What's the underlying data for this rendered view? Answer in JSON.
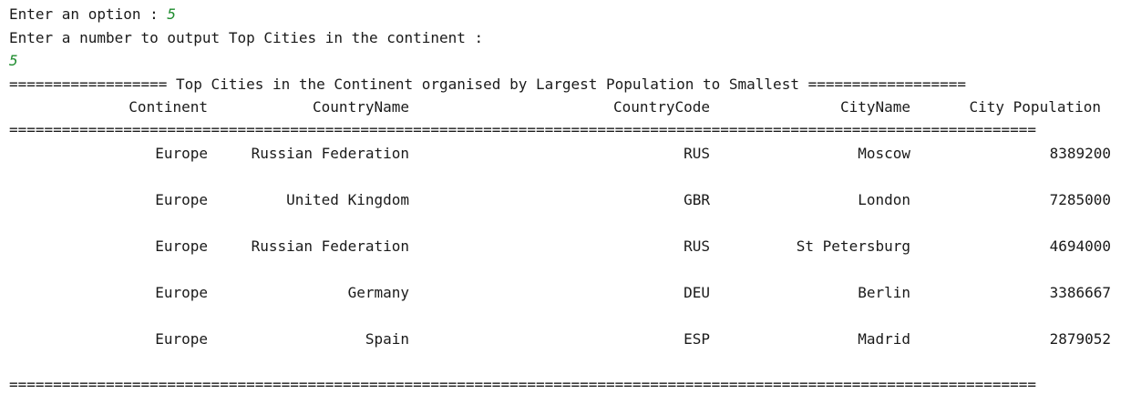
{
  "prompt_option": {
    "label": "Enter an option : ",
    "value": "5"
  },
  "prompt_number": {
    "label": "Enter a number to output Top Cities in the continent :",
    "value": "5"
  },
  "title_line": "================== Top Cities in the Continent organised by Largest Population to Smallest ==================",
  "headers": {
    "continent": "Continent",
    "country_name": "CountryName",
    "country_code": "CountryCode",
    "city_name": "CityName",
    "city_population": "City Population"
  },
  "separator": "=====================================================================================================================",
  "rows": [
    {
      "continent": "Europe",
      "country_name": "Russian Federation",
      "country_code": "RUS",
      "city_name": "Moscow",
      "city_population": "8389200"
    },
    {
      "continent": "Europe",
      "country_name": "United Kingdom",
      "country_code": "GBR",
      "city_name": "London",
      "city_population": "7285000"
    },
    {
      "continent": "Europe",
      "country_name": "Russian Federation",
      "country_code": "RUS",
      "city_name": "St Petersburg",
      "city_population": "4694000"
    },
    {
      "continent": "Europe",
      "country_name": "Germany",
      "country_code": "DEU",
      "city_name": "Berlin",
      "city_population": "3386667"
    },
    {
      "continent": "Europe",
      "country_name": "Spain",
      "country_code": "ESP",
      "city_name": "Madrid",
      "city_population": "2879052"
    }
  ]
}
